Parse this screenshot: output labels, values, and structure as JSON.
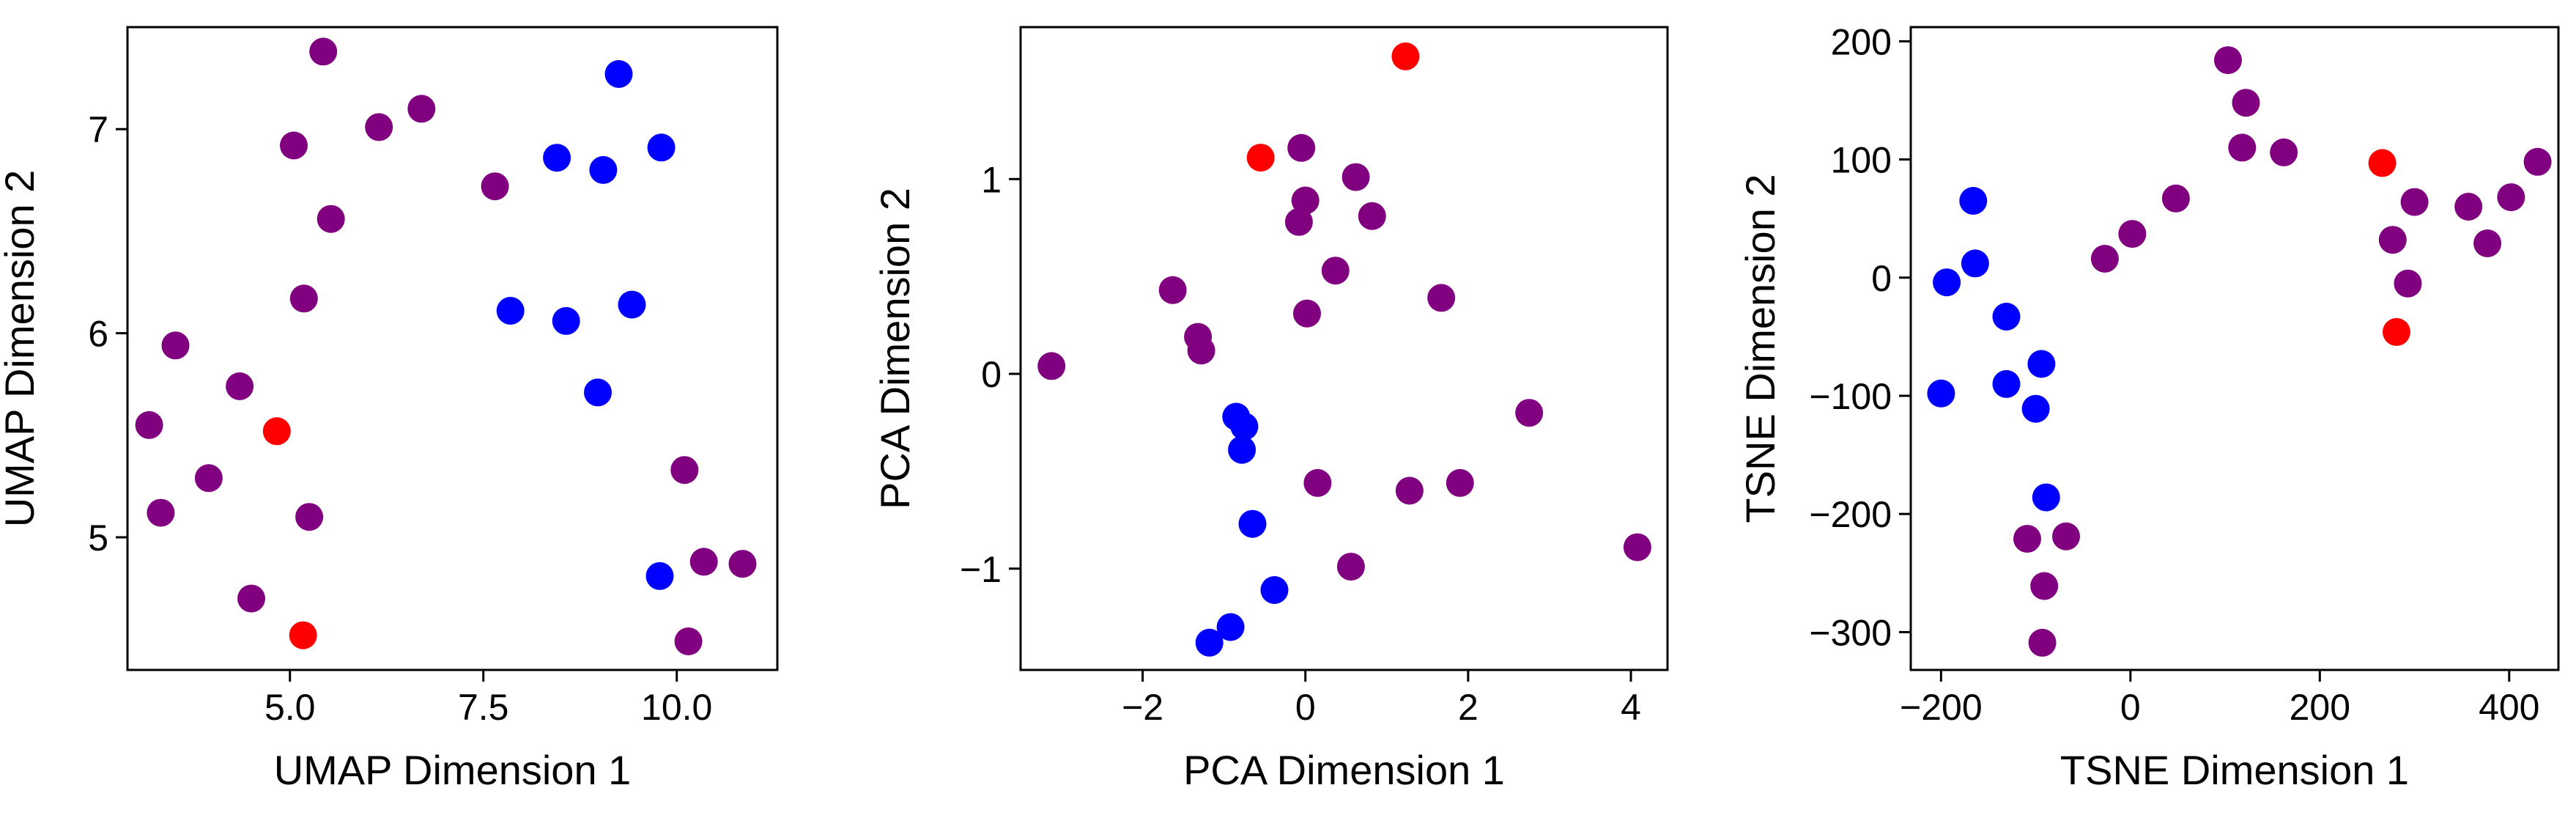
{
  "chart_data": [
    {
      "type": "scatter",
      "title": "",
      "xlabel": "UMAP Dimension 1",
      "ylabel": "UMAP Dimension 2",
      "xlim": [
        2.9,
        11.3
      ],
      "ylim": [
        4.35,
        7.5
      ],
      "xticks": [
        5.0,
        7.5,
        10.0
      ],
      "xtick_labels": [
        "5.0",
        "7.5",
        "10.0"
      ],
      "yticks": [
        5,
        6,
        7
      ],
      "ytick_labels": [
        "5",
        "6",
        "7"
      ],
      "grid": false,
      "legend": "none",
      "series": [
        {
          "color": "#800080",
          "points": [
            [
              5.43,
              7.38
            ],
            [
              6.7,
              7.1
            ],
            [
              6.15,
              7.01
            ],
            [
              5.05,
              6.92
            ],
            [
              7.65,
              6.72
            ],
            [
              5.53,
              6.56
            ],
            [
              5.18,
              6.17
            ],
            [
              3.52,
              5.94
            ],
            [
              4.35,
              5.74
            ],
            [
              3.18,
              5.55
            ],
            [
              3.95,
              5.29
            ],
            [
              3.33,
              5.12
            ],
            [
              5.25,
              5.1
            ],
            [
              4.5,
              4.7
            ],
            [
              10.1,
              5.33
            ],
            [
              10.35,
              4.88
            ],
            [
              10.85,
              4.87
            ],
            [
              10.15,
              4.49
            ]
          ]
        },
        {
          "color": "#0000ff",
          "points": [
            [
              9.25,
              7.27
            ],
            [
              8.45,
              6.86
            ],
            [
              9.05,
              6.8
            ],
            [
              9.8,
              6.91
            ],
            [
              7.85,
              6.11
            ],
            [
              8.57,
              6.06
            ],
            [
              9.42,
              6.14
            ],
            [
              8.98,
              5.71
            ],
            [
              9.78,
              4.81
            ]
          ]
        },
        {
          "color": "#ff0000",
          "points": [
            [
              4.83,
              5.52
            ],
            [
              5.17,
              4.52
            ]
          ]
        }
      ]
    },
    {
      "type": "scatter",
      "title": "",
      "xlabel": "PCA Dimension 1",
      "ylabel": "PCA Dimension 2",
      "xlim": [
        -3.5,
        4.45
      ],
      "ylim": [
        -1.52,
        1.78
      ],
      "xticks": [
        -2,
        0,
        2,
        4
      ],
      "xtick_labels": [
        "−2",
        "0",
        "2",
        "4"
      ],
      "yticks": [
        -1,
        0,
        1
      ],
      "ytick_labels": [
        "−1",
        "0",
        "1"
      ],
      "grid": false,
      "legend": "none",
      "series": [
        {
          "color": "#800080",
          "points": [
            [
              -0.05,
              1.16
            ],
            [
              0.62,
              1.01
            ],
            [
              0.0,
              0.89
            ],
            [
              -0.08,
              0.78
            ],
            [
              0.82,
              0.81
            ],
            [
              0.37,
              0.53
            ],
            [
              -1.63,
              0.43
            ],
            [
              -1.32,
              0.19
            ],
            [
              -1.28,
              0.12
            ],
            [
              -3.12,
              0.04
            ],
            [
              0.02,
              0.31
            ],
            [
              1.67,
              0.39
            ],
            [
              2.75,
              -0.2
            ],
            [
              0.15,
              -0.56
            ],
            [
              1.28,
              -0.6
            ],
            [
              1.9,
              -0.56
            ],
            [
              0.56,
              -0.99
            ],
            [
              4.08,
              -0.89
            ]
          ]
        },
        {
          "color": "#0000ff",
          "points": [
            [
              -0.85,
              -0.22
            ],
            [
              -0.75,
              -0.27
            ],
            [
              -0.78,
              -0.39
            ],
            [
              -0.65,
              -0.77
            ],
            [
              -1.18,
              -1.38
            ],
            [
              -0.92,
              -1.3
            ],
            [
              -0.38,
              -1.11
            ]
          ]
        },
        {
          "color": "#ff0000",
          "points": [
            [
              1.23,
              1.63
            ],
            [
              -0.55,
              1.11
            ]
          ]
        }
      ]
    },
    {
      "type": "scatter",
      "title": "",
      "xlabel": "TSNE Dimension 1",
      "ylabel": "TSNE Dimension 2",
      "xlim": [
        -232,
        452
      ],
      "ylim": [
        -332,
        212
      ],
      "xticks": [
        -200,
        0,
        200,
        400
      ],
      "xtick_labels": [
        "−200",
        "0",
        "200",
        "400"
      ],
      "yticks": [
        -300,
        -200,
        -100,
        0,
        100,
        200
      ],
      "ytick_labels": [
        "−300",
        "−200",
        "−100",
        "0",
        "100",
        "200"
      ],
      "grid": false,
      "legend": "none",
      "series": [
        {
          "color": "#800080",
          "points": [
            [
              103,
              184
            ],
            [
              122,
              148
            ],
            [
              118,
              110
            ],
            [
              162,
              106
            ],
            [
              48,
              67
            ],
            [
              2,
              37
            ],
            [
              -27,
              16
            ],
            [
              277,
              32
            ],
            [
              300,
              64
            ],
            [
              293,
              -5
            ],
            [
              357,
              60
            ],
            [
              377,
              29
            ],
            [
              402,
              68
            ],
            [
              430,
              98
            ],
            [
              -109,
              -221
            ],
            [
              -68,
              -219
            ],
            [
              -91,
              -261
            ],
            [
              -93,
              -309
            ]
          ]
        },
        {
          "color": "#0000ff",
          "points": [
            [
              -166,
              65
            ],
            [
              -164,
              12
            ],
            [
              -194,
              -4
            ],
            [
              -200,
              -98
            ],
            [
              -131,
              -33
            ],
            [
              -131,
              -90
            ],
            [
              -100,
              -111
            ],
            [
              -94,
              -73
            ],
            [
              -89,
              -186
            ]
          ]
        },
        {
          "color": "#ff0000",
          "points": [
            [
              266,
              97
            ],
            [
              281,
              -46
            ]
          ]
        }
      ]
    }
  ]
}
